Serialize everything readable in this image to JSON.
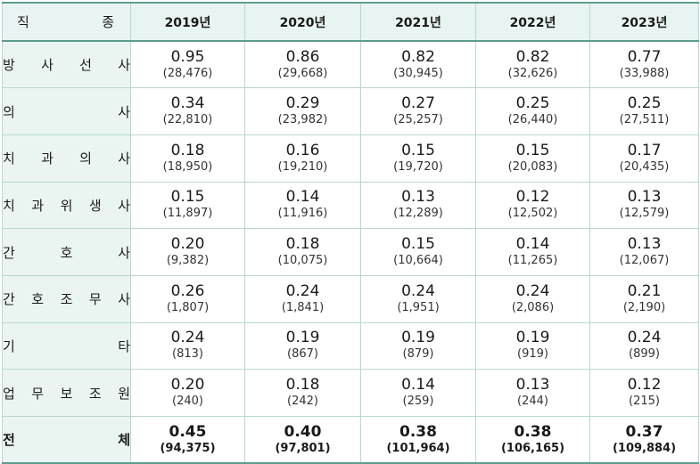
{
  "header": {
    "corner": [
      "직",
      "종"
    ],
    "years": [
      "2019년",
      "2020년",
      "2021년",
      "2022년",
      "2023년"
    ]
  },
  "rows": [
    {
      "label": [
        "방",
        "사",
        "선",
        "사"
      ],
      "cells": [
        {
          "value": "0.95",
          "count": "(28,476)"
        },
        {
          "value": "0.86",
          "count": "(29,668)"
        },
        {
          "value": "0.82",
          "count": "(30,945)"
        },
        {
          "value": "0.82",
          "count": "(32,626)"
        },
        {
          "value": "0.77",
          "count": "(33,988)"
        }
      ]
    },
    {
      "label": [
        "의",
        "사"
      ],
      "cells": [
        {
          "value": "0.34",
          "count": "(22,810)"
        },
        {
          "value": "0.29",
          "count": "(23,982)"
        },
        {
          "value": "0.27",
          "count": "(25,257)"
        },
        {
          "value": "0.25",
          "count": "(26,440)"
        },
        {
          "value": "0.25",
          "count": "(27,511)"
        }
      ]
    },
    {
      "label": [
        "치",
        "과",
        "의",
        "사"
      ],
      "cells": [
        {
          "value": "0.18",
          "count": "(18,950)"
        },
        {
          "value": "0.16",
          "count": "(19,210)"
        },
        {
          "value": "0.15",
          "count": "(19,720)"
        },
        {
          "value": "0.15",
          "count": "(20,083)"
        },
        {
          "value": "0.17",
          "count": "(20,435)"
        }
      ]
    },
    {
      "label": [
        "치",
        "과",
        "위",
        "생",
        "사"
      ],
      "cells": [
        {
          "value": "0.15",
          "count": "(11,897)"
        },
        {
          "value": "0.14",
          "count": "(11,916)"
        },
        {
          "value": "0.13",
          "count": "(12,289)"
        },
        {
          "value": "0.12",
          "count": "(12,502)"
        },
        {
          "value": "0.13",
          "count": "(12,579)"
        }
      ]
    },
    {
      "label": [
        "간",
        "호",
        "사"
      ],
      "cells": [
        {
          "value": "0.20",
          "count": "(9,382)"
        },
        {
          "value": "0.18",
          "count": "(10,075)"
        },
        {
          "value": "0.15",
          "count": "(10,664)"
        },
        {
          "value": "0.14",
          "count": "(11,265)"
        },
        {
          "value": "0.13",
          "count": "(12,067)"
        }
      ]
    },
    {
      "label": [
        "간",
        "호",
        "조",
        "무",
        "사"
      ],
      "cells": [
        {
          "value": "0.26",
          "count": "(1,807)"
        },
        {
          "value": "0.24",
          "count": "(1,841)"
        },
        {
          "value": "0.24",
          "count": "(1,951)"
        },
        {
          "value": "0.24",
          "count": "(2,086)"
        },
        {
          "value": "0.21",
          "count": "(2,190)"
        }
      ]
    },
    {
      "label": [
        "기",
        "타"
      ],
      "cells": [
        {
          "value": "0.24",
          "count": "(813)"
        },
        {
          "value": "0.19",
          "count": "(867)"
        },
        {
          "value": "0.19",
          "count": "(879)"
        },
        {
          "value": "0.19",
          "count": "(919)"
        },
        {
          "value": "0.24",
          "count": "(899)"
        }
      ]
    },
    {
      "label": [
        "업",
        "무",
        "보",
        "조",
        "원"
      ],
      "cells": [
        {
          "value": "0.20",
          "count": "(240)"
        },
        {
          "value": "0.18",
          "count": "(242)"
        },
        {
          "value": "0.14",
          "count": "(259)"
        },
        {
          "value": "0.13",
          "count": "(244)"
        },
        {
          "value": "0.12",
          "count": "(215)"
        }
      ]
    },
    {
      "label": [
        "전",
        "체"
      ],
      "total": true,
      "cells": [
        {
          "value": "0.45",
          "count": "(94,375)"
        },
        {
          "value": "0.40",
          "count": "(97,801)"
        },
        {
          "value": "0.38",
          "count": "(101,964)"
        },
        {
          "value": "0.38",
          "count": "(106,165)"
        },
        {
          "value": "0.37",
          "count": "(109,884)"
        }
      ]
    }
  ],
  "colors": {
    "header_bg": "#e8f4f1",
    "label_bg": "#eaf5f2",
    "border": "#b9d6d0",
    "rule": "#5d9c8f"
  }
}
